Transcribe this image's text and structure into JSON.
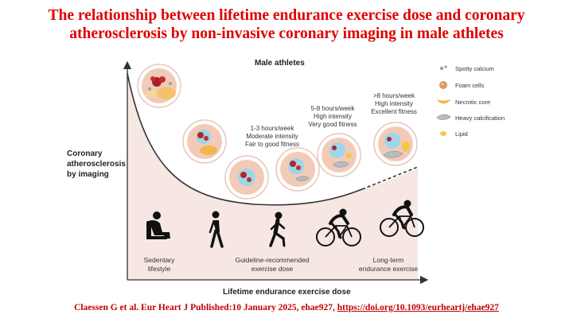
{
  "title": {
    "line1": "The relationship between lifetime endurance exercise dose and coronary",
    "line2": "atherosclerosis by non-invasive coronary imaging in male athletes"
  },
  "diagram": {
    "heading": "Male athletes",
    "y_axis_label": [
      "Coronary",
      "atherosclerosis",
      "by imaging"
    ],
    "x_axis_label": "Lifetime endurance exercise dose",
    "dose_labels": [
      [
        "1-3 hours/week",
        "Moderate intensity",
        "Fair to good fitness"
      ],
      [
        "5-8 hours/week",
        "High intensity",
        "Very good fitness"
      ],
      [
        ">8 hours/week",
        "High intensity",
        "Excellent fitness"
      ]
    ],
    "categories": [
      [
        "Sedentary",
        "lifestyle"
      ],
      [
        "Guideline-recommended",
        "exercise dose"
      ],
      [
        "Long-term",
        "endurance exercise"
      ]
    ],
    "legend": [
      "Spotty calcium",
      "Foam cells",
      "Necrotic core",
      "Heavy calcification",
      "Lipid"
    ],
    "colors": {
      "curve_fill": "#f6e7e3",
      "artery_outer": "#f1cbb8",
      "lumen": "#9ed6ea",
      "foam": "#d99a5e",
      "necrotic": "#f0b84a",
      "lipid": "#f5c64a",
      "calcification": "#b8bcc2"
    }
  },
  "footer": {
    "citation": "Claessen G et al. Eur Heart J Published:10 January 2025, ehae927,",
    "doi": "https://doi.org/10.1093/eurheartj/ehae927"
  }
}
